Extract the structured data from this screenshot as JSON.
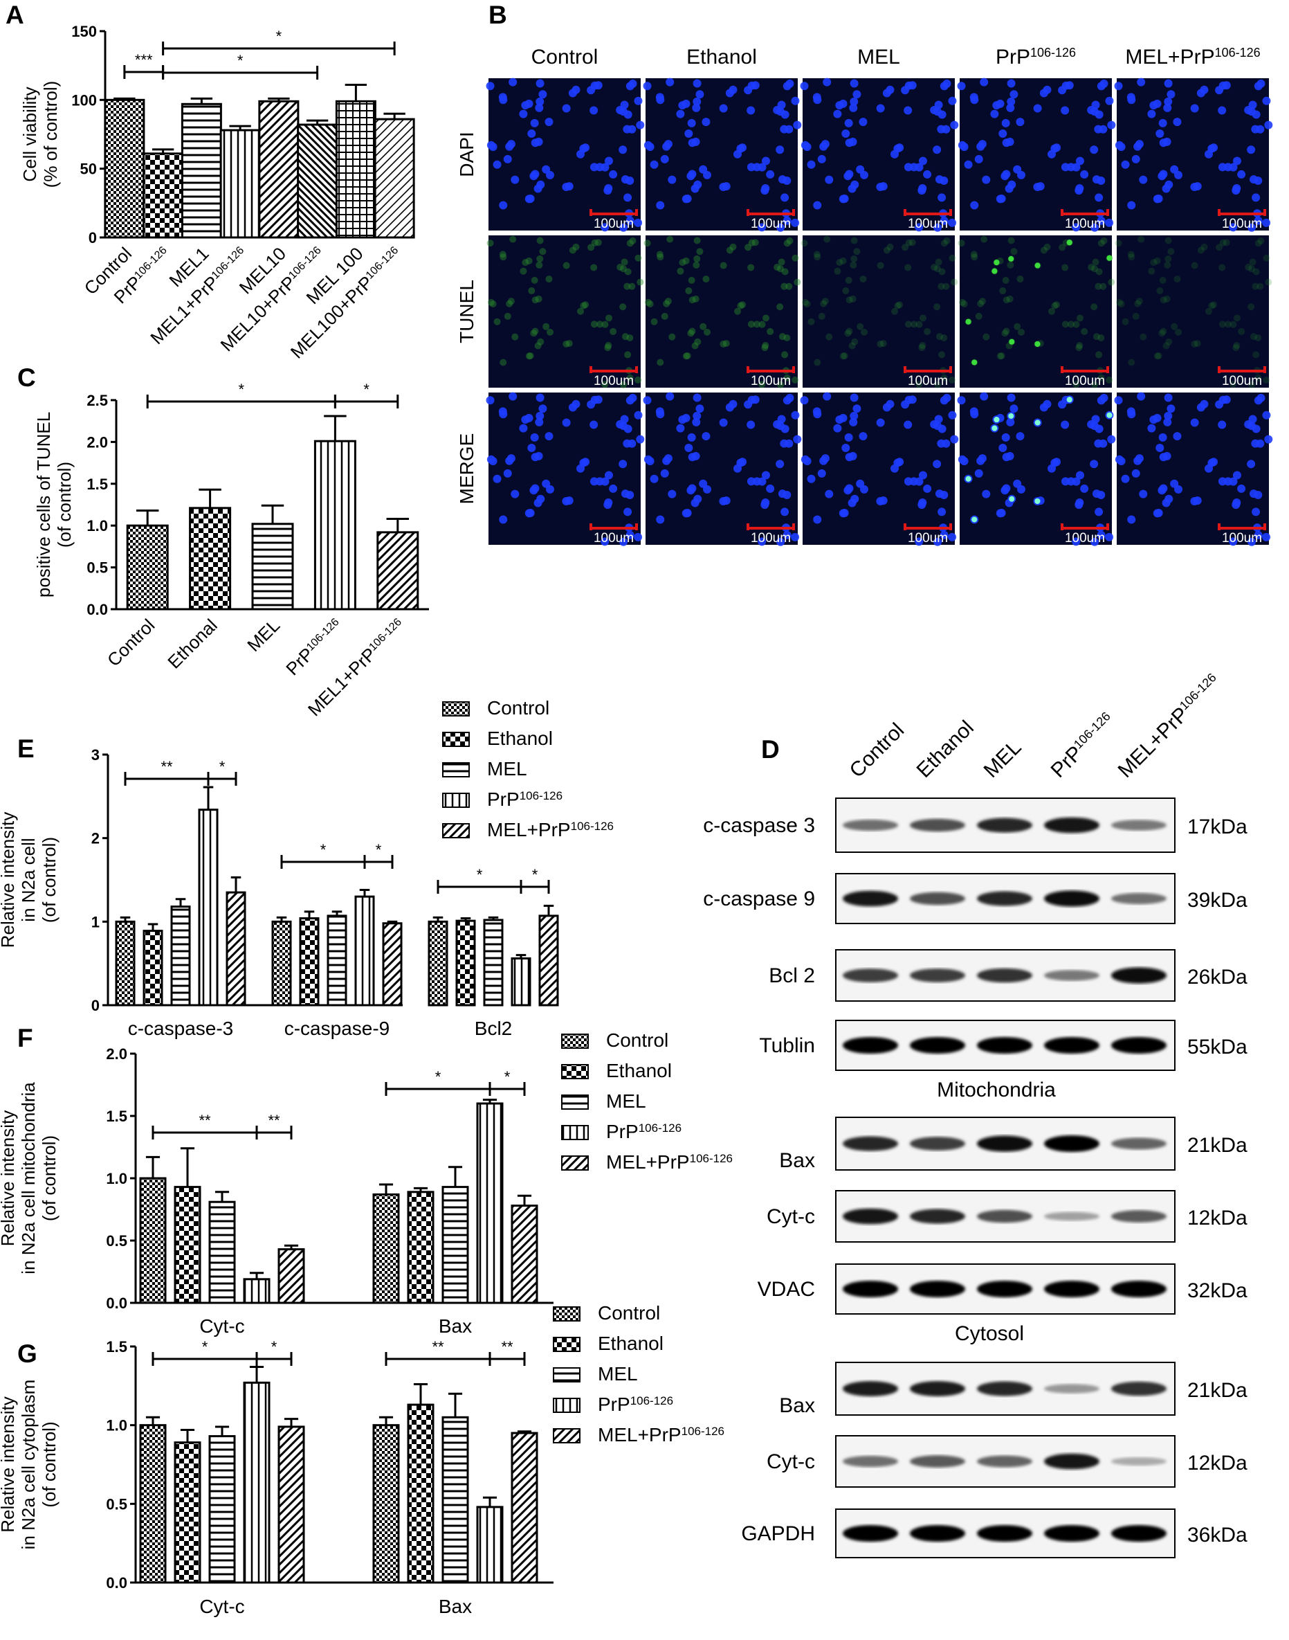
{
  "colors": {
    "micro_bg": "#050a2a",
    "dapi": "#1e3cff",
    "tunel": "#3cdc3c",
    "scale": "#e01818"
  },
  "groups5": [
    "Control",
    "Ethanol",
    "MEL",
    "PrP",
    "MEL+PrP"
  ],
  "sup": "106-126",
  "panels": {
    "A": "A",
    "B": "B",
    "C": "C",
    "D": "D",
    "E": "E",
    "F": "F",
    "G": "G"
  },
  "panelB": {
    "columns": [
      "Control",
      "Ethanol",
      "MEL",
      "PrP",
      "MEL+PrP"
    ],
    "rows": [
      "DAPI",
      "TUNEL",
      "MERGE"
    ],
    "scale_label": "100um"
  },
  "panelD": {
    "lanes": [
      "Control",
      "Ethanol",
      "MEL",
      "PrP",
      "MEL+PrP"
    ],
    "section_mito": "Mitochondria",
    "section_cyto": "Cytosol",
    "blots": [
      {
        "label": "c-caspase 3",
        "kda": "17kDa",
        "intensity": [
          0.45,
          0.6,
          0.8,
          0.9,
          0.4
        ]
      },
      {
        "label": "c-caspase 9",
        "kda": "39kDa",
        "intensity": [
          0.9,
          0.6,
          0.8,
          0.95,
          0.45
        ]
      },
      {
        "label": "Bcl 2",
        "kda": "26kDa",
        "intensity": [
          0.7,
          0.7,
          0.75,
          0.4,
          0.95
        ]
      },
      {
        "label": "Tublin",
        "kda": "55kDa",
        "intensity": [
          1,
          1,
          1,
          1,
          1
        ]
      },
      {
        "label": "Bax",
        "kda": "21kDa",
        "intensity": [
          0.8,
          0.7,
          0.95,
          1,
          0.5
        ]
      },
      {
        "label": "Cyt-c",
        "kda": "12kDa",
        "intensity": [
          0.9,
          0.8,
          0.6,
          0.2,
          0.55
        ]
      },
      {
        "label": "VDAC",
        "kda": "32kDa",
        "intensity": [
          1,
          1,
          1,
          1,
          1
        ]
      },
      {
        "label": "Bax",
        "kda": "21kDa",
        "intensity": [
          0.85,
          0.85,
          0.8,
          0.25,
          0.75
        ]
      },
      {
        "label": "Cyt-c",
        "kda": "12kDa",
        "intensity": [
          0.45,
          0.55,
          0.5,
          0.9,
          0.15
        ]
      },
      {
        "label": "GAPDH",
        "kda": "36kDa",
        "intensity": [
          1,
          1,
          1,
          1,
          1
        ]
      }
    ]
  },
  "chart_data": [
    {
      "id": "A",
      "type": "bar",
      "ylabel": [
        "Cell viability",
        "(% of control)"
      ],
      "ylim": [
        0,
        150
      ],
      "yticks": [
        0,
        50,
        100,
        150
      ],
      "categories": [
        "Control",
        "PrP",
        "MEL1",
        "MEL1+PrP",
        "MEL10",
        "MEL10+PrP",
        "MEL 100",
        "MEL100+PrP"
      ],
      "values": [
        100,
        61,
        97,
        78,
        99,
        82,
        99,
        86
      ],
      "errors": [
        1,
        3,
        4,
        3,
        2,
        3,
        12,
        4
      ],
      "significance": [
        {
          "from": 0,
          "to": 1,
          "label": "***"
        },
        {
          "from": 1,
          "to": 5,
          "label": "*"
        },
        {
          "from": 1,
          "to": 7,
          "label": "*"
        }
      ]
    },
    {
      "id": "C",
      "type": "bar",
      "ylabel": [
        "positive cells of TUNEL",
        "(of control)"
      ],
      "ylim": [
        0,
        2.5
      ],
      "yticks": [
        "0.0",
        "0.5",
        "1.0",
        "1.5",
        "2.0",
        "2.5"
      ],
      "categories": [
        "Control",
        "Ethonal",
        "MEL",
        "PrP",
        "MEL1+PrP"
      ],
      "values": [
        1.0,
        1.21,
        1.02,
        2.01,
        0.92
      ],
      "errors": [
        0.18,
        0.22,
        0.22,
        0.3,
        0.16
      ],
      "significance": [
        {
          "from": 0,
          "to": 3,
          "label": "*"
        },
        {
          "from": 3,
          "to": 4,
          "label": "*"
        }
      ]
    },
    {
      "id": "E",
      "type": "bar",
      "ylabel": [
        "Relative intensity",
        "in N2a cell",
        "(of control)"
      ],
      "ylim": [
        0,
        3
      ],
      "yticks": [
        0,
        1,
        2,
        3
      ],
      "categories": [
        "c-caspase-3",
        "c-caspase-9",
        "Bcl2"
      ],
      "legend": [
        "Control",
        "Ethanol",
        "MEL",
        "PrP",
        "MEL+PrP"
      ],
      "series": [
        {
          "name": "Control",
          "values": [
            1.0,
            1.0,
            1.0
          ],
          "errors": [
            0.05,
            0.05,
            0.05
          ]
        },
        {
          "name": "Ethanol",
          "values": [
            0.89,
            1.04,
            1.01
          ],
          "errors": [
            0.08,
            0.08,
            0.03
          ]
        },
        {
          "name": "MEL",
          "values": [
            1.18,
            1.07,
            1.02
          ],
          "errors": [
            0.09,
            0.05,
            0.03
          ]
        },
        {
          "name": "PrP",
          "values": [
            2.34,
            1.3,
            0.56
          ],
          "errors": [
            0.27,
            0.08,
            0.04
          ]
        },
        {
          "name": "MEL+PrP",
          "values": [
            1.35,
            0.98,
            1.07
          ],
          "errors": [
            0.18,
            0.02,
            0.12
          ]
        }
      ],
      "significance": [
        {
          "cat": 0,
          "from": 0,
          "to": 3,
          "label": "**"
        },
        {
          "cat": 0,
          "from": 3,
          "to": 4,
          "label": "*"
        },
        {
          "cat": 1,
          "from": 0,
          "to": 3,
          "label": "*"
        },
        {
          "cat": 1,
          "from": 3,
          "to": 4,
          "label": "*"
        },
        {
          "cat": 2,
          "from": 0,
          "to": 3,
          "label": "*"
        },
        {
          "cat": 2,
          "from": 3,
          "to": 4,
          "label": "*"
        }
      ]
    },
    {
      "id": "F",
      "type": "bar",
      "ylabel": [
        "Relative intensity",
        "in N2a cell mitochondria",
        "(of control)"
      ],
      "ylim": [
        0,
        2
      ],
      "yticks": [
        "0.0",
        "0.5",
        "1.0",
        "1.5",
        "2.0"
      ],
      "categories": [
        "Cyt-c",
        "Bax"
      ],
      "legend": [
        "Control",
        "Ethanol",
        "MEL",
        "PrP",
        "MEL+PrP"
      ],
      "series": [
        {
          "name": "Control",
          "values": [
            1.0,
            0.87
          ],
          "errors": [
            0.17,
            0.08
          ]
        },
        {
          "name": "Ethanol",
          "values": [
            0.93,
            0.89
          ],
          "errors": [
            0.31,
            0.03
          ]
        },
        {
          "name": "MEL",
          "values": [
            0.81,
            0.93
          ],
          "errors": [
            0.08,
            0.16
          ]
        },
        {
          "name": "PrP",
          "values": [
            0.19,
            1.6
          ],
          "errors": [
            0.05,
            0.03
          ]
        },
        {
          "name": "MEL+PrP",
          "values": [
            0.43,
            0.78
          ],
          "errors": [
            0.03,
            0.08
          ]
        }
      ],
      "significance": [
        {
          "cat": 0,
          "from": 0,
          "to": 3,
          "label": "**"
        },
        {
          "cat": 0,
          "from": 3,
          "to": 4,
          "label": "**"
        },
        {
          "cat": 1,
          "from": 0,
          "to": 3,
          "label": "*"
        },
        {
          "cat": 1,
          "from": 3,
          "to": 4,
          "label": "*"
        }
      ]
    },
    {
      "id": "G",
      "type": "bar",
      "ylabel": [
        "Relative intensity",
        "in N2a cell cytoplasm",
        "(of control)"
      ],
      "ylim": [
        0,
        1.5
      ],
      "yticks": [
        "0.0",
        "0.5",
        "1.0",
        "1.5"
      ],
      "categories": [
        "Cyt-c",
        "Bax"
      ],
      "legend": [
        "Control",
        "Ethanol",
        "MEL",
        "PrP",
        "MEL+PrP"
      ],
      "series": [
        {
          "name": "Control",
          "values": [
            1.0,
            1.0
          ],
          "errors": [
            0.05,
            0.05
          ]
        },
        {
          "name": "Ethanol",
          "values": [
            0.89,
            1.13
          ],
          "errors": [
            0.08,
            0.13
          ]
        },
        {
          "name": "MEL",
          "values": [
            0.93,
            1.05
          ],
          "errors": [
            0.06,
            0.15
          ]
        },
        {
          "name": "PrP",
          "values": [
            1.27,
            0.48
          ],
          "errors": [
            0.1,
            0.06
          ]
        },
        {
          "name": "MEL+PrP",
          "values": [
            0.99,
            0.95
          ],
          "errors": [
            0.05,
            0.01
          ]
        }
      ],
      "significance": [
        {
          "cat": 0,
          "from": 0,
          "to": 3,
          "label": "*"
        },
        {
          "cat": 0,
          "from": 3,
          "to": 4,
          "label": "*"
        },
        {
          "cat": 1,
          "from": 0,
          "to": 3,
          "label": "**"
        },
        {
          "cat": 1,
          "from": 3,
          "to": 4,
          "label": "**"
        }
      ]
    }
  ]
}
